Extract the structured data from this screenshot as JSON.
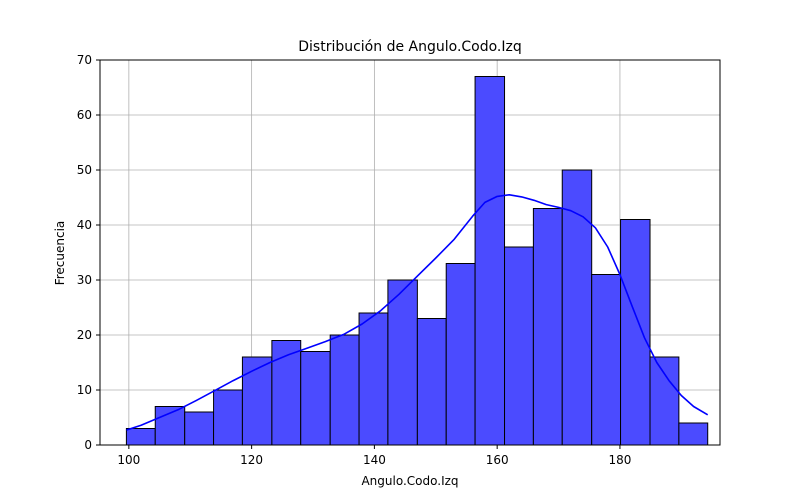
{
  "chart_data": {
    "type": "bar",
    "title": "Distribución de Angulo.Codo.Izq",
    "xlabel": "Angulo.Codo.Izq",
    "ylabel": "Frecuencia",
    "xlim": [
      95.3,
      196.3
    ],
    "ylim": [
      0,
      70
    ],
    "xticks": [
      100,
      120,
      140,
      160,
      180
    ],
    "yticks": [
      0,
      10,
      20,
      30,
      40,
      50,
      60,
      70
    ],
    "grid": true,
    "bar_color": "#4b4bff",
    "bar_edge_color": "#000000",
    "kde_color": "#0000ff",
    "bins": [
      {
        "x0": 99.6,
        "x1": 104.3,
        "value": 3
      },
      {
        "x0": 104.3,
        "x1": 109.1,
        "value": 7
      },
      {
        "x0": 109.1,
        "x1": 113.8,
        "value": 6
      },
      {
        "x0": 113.8,
        "x1": 118.5,
        "value": 10
      },
      {
        "x0": 118.5,
        "x1": 123.3,
        "value": 16
      },
      {
        "x0": 123.3,
        "x1": 128.0,
        "value": 19
      },
      {
        "x0": 128.0,
        "x1": 132.8,
        "value": 17
      },
      {
        "x0": 132.8,
        "x1": 137.5,
        "value": 20
      },
      {
        "x0": 137.5,
        "x1": 142.2,
        "value": 24
      },
      {
        "x0": 142.2,
        "x1": 147.0,
        "value": 30
      },
      {
        "x0": 147.0,
        "x1": 151.7,
        "value": 23
      },
      {
        "x0": 151.7,
        "x1": 156.4,
        "value": 33
      },
      {
        "x0": 156.4,
        "x1": 161.2,
        "value": 67
      },
      {
        "x0": 161.2,
        "x1": 165.9,
        "value": 36
      },
      {
        "x0": 165.9,
        "x1": 170.6,
        "value": 43
      },
      {
        "x0": 170.6,
        "x1": 175.4,
        "value": 50
      },
      {
        "x0": 175.4,
        "x1": 180.1,
        "value": 31
      },
      {
        "x0": 180.1,
        "x1": 184.9,
        "value": 41
      },
      {
        "x0": 184.9,
        "x1": 189.6,
        "value": 16
      },
      {
        "x0": 189.6,
        "x1": 194.3,
        "value": 4
      }
    ],
    "kde": {
      "x": [
        99.6,
        102,
        105,
        108,
        111,
        114,
        117,
        120,
        123,
        126,
        129,
        132,
        135,
        138,
        141,
        144,
        147,
        150,
        153,
        156,
        158,
        160,
        162,
        164,
        166,
        168,
        170,
        172,
        174,
        176,
        178,
        180,
        182,
        184,
        186,
        188,
        190,
        192,
        194.3
      ],
      "y": [
        2.7,
        3.6,
        5.0,
        6.4,
        8.1,
        9.9,
        11.7,
        13.4,
        15.0,
        16.4,
        17.6,
        18.8,
        20.1,
        22.0,
        24.4,
        27.4,
        30.7,
        34.0,
        37.4,
        41.6,
        44.1,
        45.2,
        45.5,
        45.1,
        44.5,
        43.7,
        43.2,
        42.6,
        41.5,
        39.5,
        36.0,
        31.0,
        25.2,
        19.5,
        15.0,
        11.7,
        9.0,
        7.0,
        5.5
      ]
    }
  }
}
